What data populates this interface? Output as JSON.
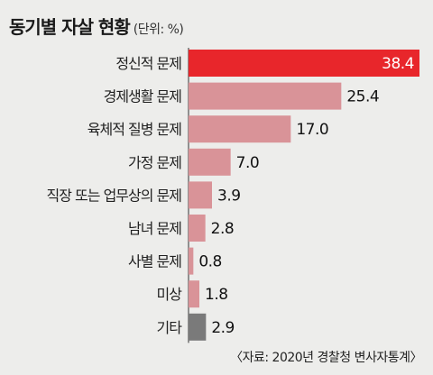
{
  "header": {
    "title": "동기별 자살 현황",
    "unit": "(단위: %)"
  },
  "chart_data": {
    "type": "bar",
    "orientation": "horizontal",
    "title": "동기별 자살 현황",
    "unit": "(단위: %)",
    "categories": [
      "정신적 문제",
      "경제생활 문제",
      "육체적 질병 문제",
      "가정 문제",
      "직장 또는 업무상의 문제",
      "남녀 문제",
      "사별 문제",
      "미상",
      "기타"
    ],
    "values": [
      38.4,
      25.4,
      17.0,
      7.0,
      3.9,
      2.8,
      0.8,
      1.8,
      2.9
    ],
    "value_labels": [
      "38.4",
      "25.4",
      "17.0",
      "7.0",
      "3.9",
      "2.8",
      "0.8",
      "1.8",
      "2.9"
    ],
    "xlim": [
      0,
      38.4
    ],
    "grid": false,
    "legend": "none",
    "colors": {
      "highlight": "#e8262b",
      "default": "#d99398",
      "other": "#7a7a7a"
    },
    "bar_color_keys": [
      "highlight",
      "default",
      "default",
      "default",
      "default",
      "default",
      "default",
      "default",
      "other"
    ]
  },
  "footer": {
    "source": "〈자료: 2020년 경찰청 변사자통계〉"
  }
}
